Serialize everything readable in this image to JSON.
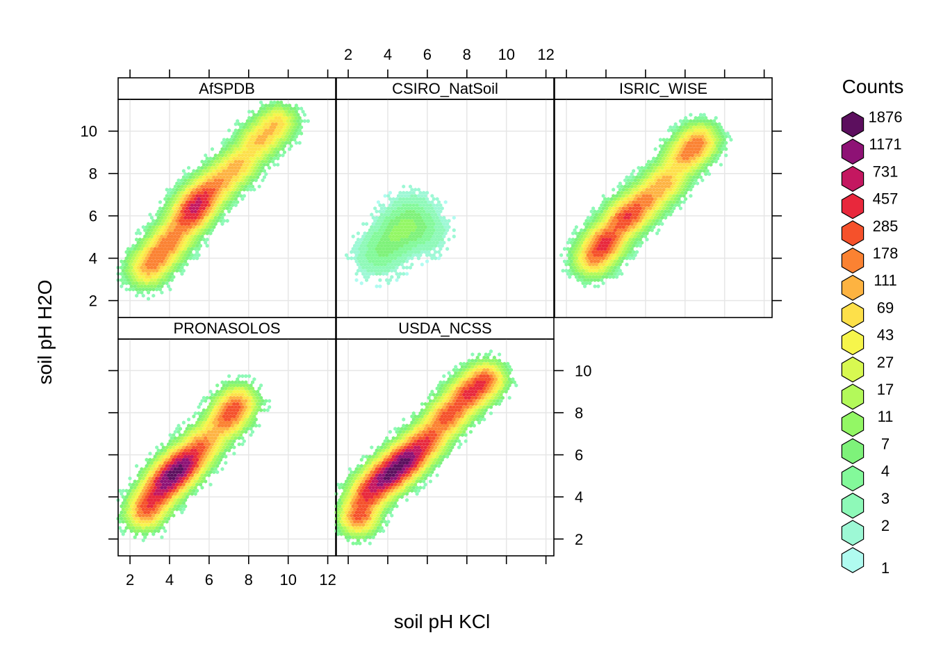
{
  "chart_data": {
    "type": "heatmap",
    "subtype": "hexbin-lattice",
    "xlabel": "soil pH KCl",
    "ylabel": "soil pH H2O",
    "xlim": [
      1.4,
      12.4
    ],
    "ylim": [
      1.2,
      11.5
    ],
    "x_ticks": [
      2,
      4,
      6,
      8,
      10,
      12
    ],
    "y_ticks": [
      2,
      4,
      6,
      8,
      10
    ],
    "grid": true,
    "legend": {
      "title": "Counts",
      "placement": "right",
      "labels": [
        "1876",
        "1171",
        "731",
        "457",
        "285",
        "178",
        "111",
        "69",
        "43",
        "27",
        "17",
        "11",
        "7",
        "4",
        "3",
        "2",
        "1"
      ],
      "colors": [
        "#5c0f5e",
        "#8e1275",
        "#c41760",
        "#e8283c",
        "#f5512b",
        "#fb8232",
        "#fdb341",
        "#fde04a",
        "#f6f54b",
        "#d8f951",
        "#b3f95a",
        "#93f765",
        "#7ef27a",
        "#83f99a",
        "#8ef9b8",
        "#9df8d5",
        "#b0fbf0"
      ]
    },
    "panels": [
      {
        "name": "AfSPDB",
        "points": [
          [
            5.0,
            6.0
          ],
          [
            5.6,
            6.8
          ],
          [
            4.2,
            5.0
          ],
          [
            6.5,
            7.6
          ],
          [
            7.5,
            8.4
          ],
          [
            3.5,
            4.2
          ],
          [
            2.8,
            3.4
          ],
          [
            8.5,
            9.5
          ],
          [
            9.5,
            10.4
          ]
        ],
        "peak_count": 731
      },
      {
        "name": "CSIRO_NatSoil",
        "points": [
          [
            4.0,
            4.6
          ],
          [
            4.5,
            5.3
          ],
          [
            3.4,
            4.0
          ],
          [
            5.0,
            5.5
          ],
          [
            6.0,
            5.2
          ],
          [
            5.3,
            6.2
          ]
        ],
        "peak_count": 11
      },
      {
        "name": "ISRIC_WISE",
        "points": [
          [
            4.0,
            4.8
          ],
          [
            5.0,
            5.9
          ],
          [
            6.0,
            6.7
          ],
          [
            7.0,
            7.6
          ],
          [
            3.3,
            3.9
          ],
          [
            8.0,
            8.8
          ],
          [
            8.8,
            9.6
          ]
        ],
        "peak_count": 457
      },
      {
        "name": "PRONASOLOS",
        "points": [
          [
            4.0,
            4.9
          ],
          [
            4.8,
            5.6
          ],
          [
            5.7,
            6.5
          ],
          [
            3.3,
            4.1
          ],
          [
            6.8,
            7.6
          ],
          [
            7.5,
            8.5
          ],
          [
            2.7,
            3.2
          ]
        ],
        "peak_count": 1876
      },
      {
        "name": "USDA_NCSS",
        "points": [
          [
            4.0,
            5.0
          ],
          [
            5.0,
            5.8
          ],
          [
            6.0,
            6.7
          ],
          [
            7.0,
            7.8
          ],
          [
            3.0,
            4.2
          ],
          [
            8.0,
            8.8
          ],
          [
            9.0,
            9.6
          ],
          [
            2.5,
            3.0
          ]
        ],
        "peak_count": 1876
      }
    ]
  }
}
